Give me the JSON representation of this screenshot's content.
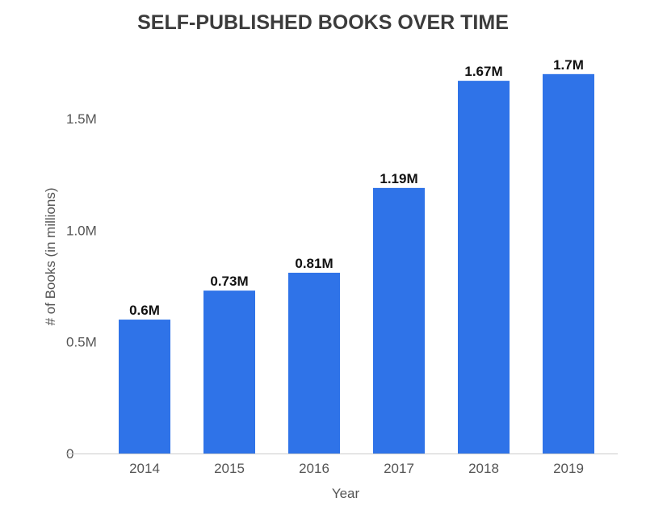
{
  "chart_data": {
    "type": "bar",
    "title": "SELF-PUBLISHED BOOKS OVER TIME",
    "xlabel": "Year",
    "ylabel": "# of Books (in millions)",
    "categories": [
      "2014",
      "2015",
      "2016",
      "2017",
      "2018",
      "2019"
    ],
    "values": [
      0.6,
      0.73,
      0.81,
      1.19,
      1.67,
      1.7
    ],
    "data_labels": [
      "0.6M",
      "0.73M",
      "0.81M",
      "1.19M",
      "1.67M",
      "1.7M"
    ],
    "yticks": [
      {
        "value": 0,
        "label": "0"
      },
      {
        "value": 0.5,
        "label": "0.5M"
      },
      {
        "value": 1.0,
        "label": "1.0M"
      },
      {
        "value": 1.5,
        "label": "1.5M"
      }
    ],
    "ylim": [
      0,
      1.75
    ],
    "grid": false,
    "legend": "none",
    "colors": {
      "bar": "#2f73e8",
      "baseline": "#cccccc"
    }
  }
}
